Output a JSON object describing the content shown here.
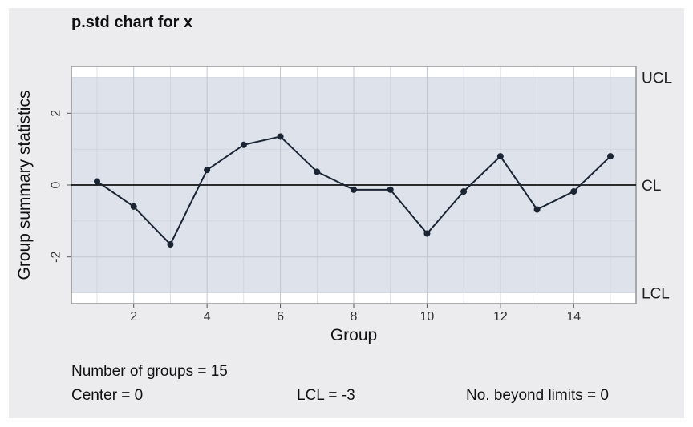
{
  "stats": {
    "groups": "Number of groups = 15",
    "center": "Center = 0",
    "lcl": "LCL = -3",
    "beyond": "No. beyond limits = 0"
  },
  "chart_data": {
    "type": "line",
    "title": "p.std chart for x",
    "xlabel": "Group",
    "ylabel": "Group summary statistics",
    "x": [
      1,
      2,
      3,
      4,
      5,
      6,
      7,
      8,
      9,
      10,
      11,
      12,
      13,
      14,
      15
    ],
    "series": [
      {
        "values": [
          0.1,
          -0.6,
          -1.65,
          0.42,
          1.12,
          1.35,
          0.37,
          -0.13,
          -0.13,
          -1.35,
          -0.18,
          0.8,
          -0.68,
          -0.18,
          0.8
        ]
      }
    ],
    "xlim": [
      0.3,
      15.7
    ],
    "ylim": [
      -3.3,
      3.3
    ],
    "xticks": [
      2,
      4,
      6,
      8,
      10,
      12,
      14
    ],
    "yticks": [
      -2,
      0,
      2
    ],
    "limits": {
      "UCL": 3,
      "CL": 0,
      "LCL": -3
    },
    "limit_labels": [
      "UCL",
      "CL",
      "LCL"
    ],
    "colors": {
      "band": "#dde2eb",
      "line": "#1a2433",
      "limits": "#111111"
    },
    "grid": true
  }
}
